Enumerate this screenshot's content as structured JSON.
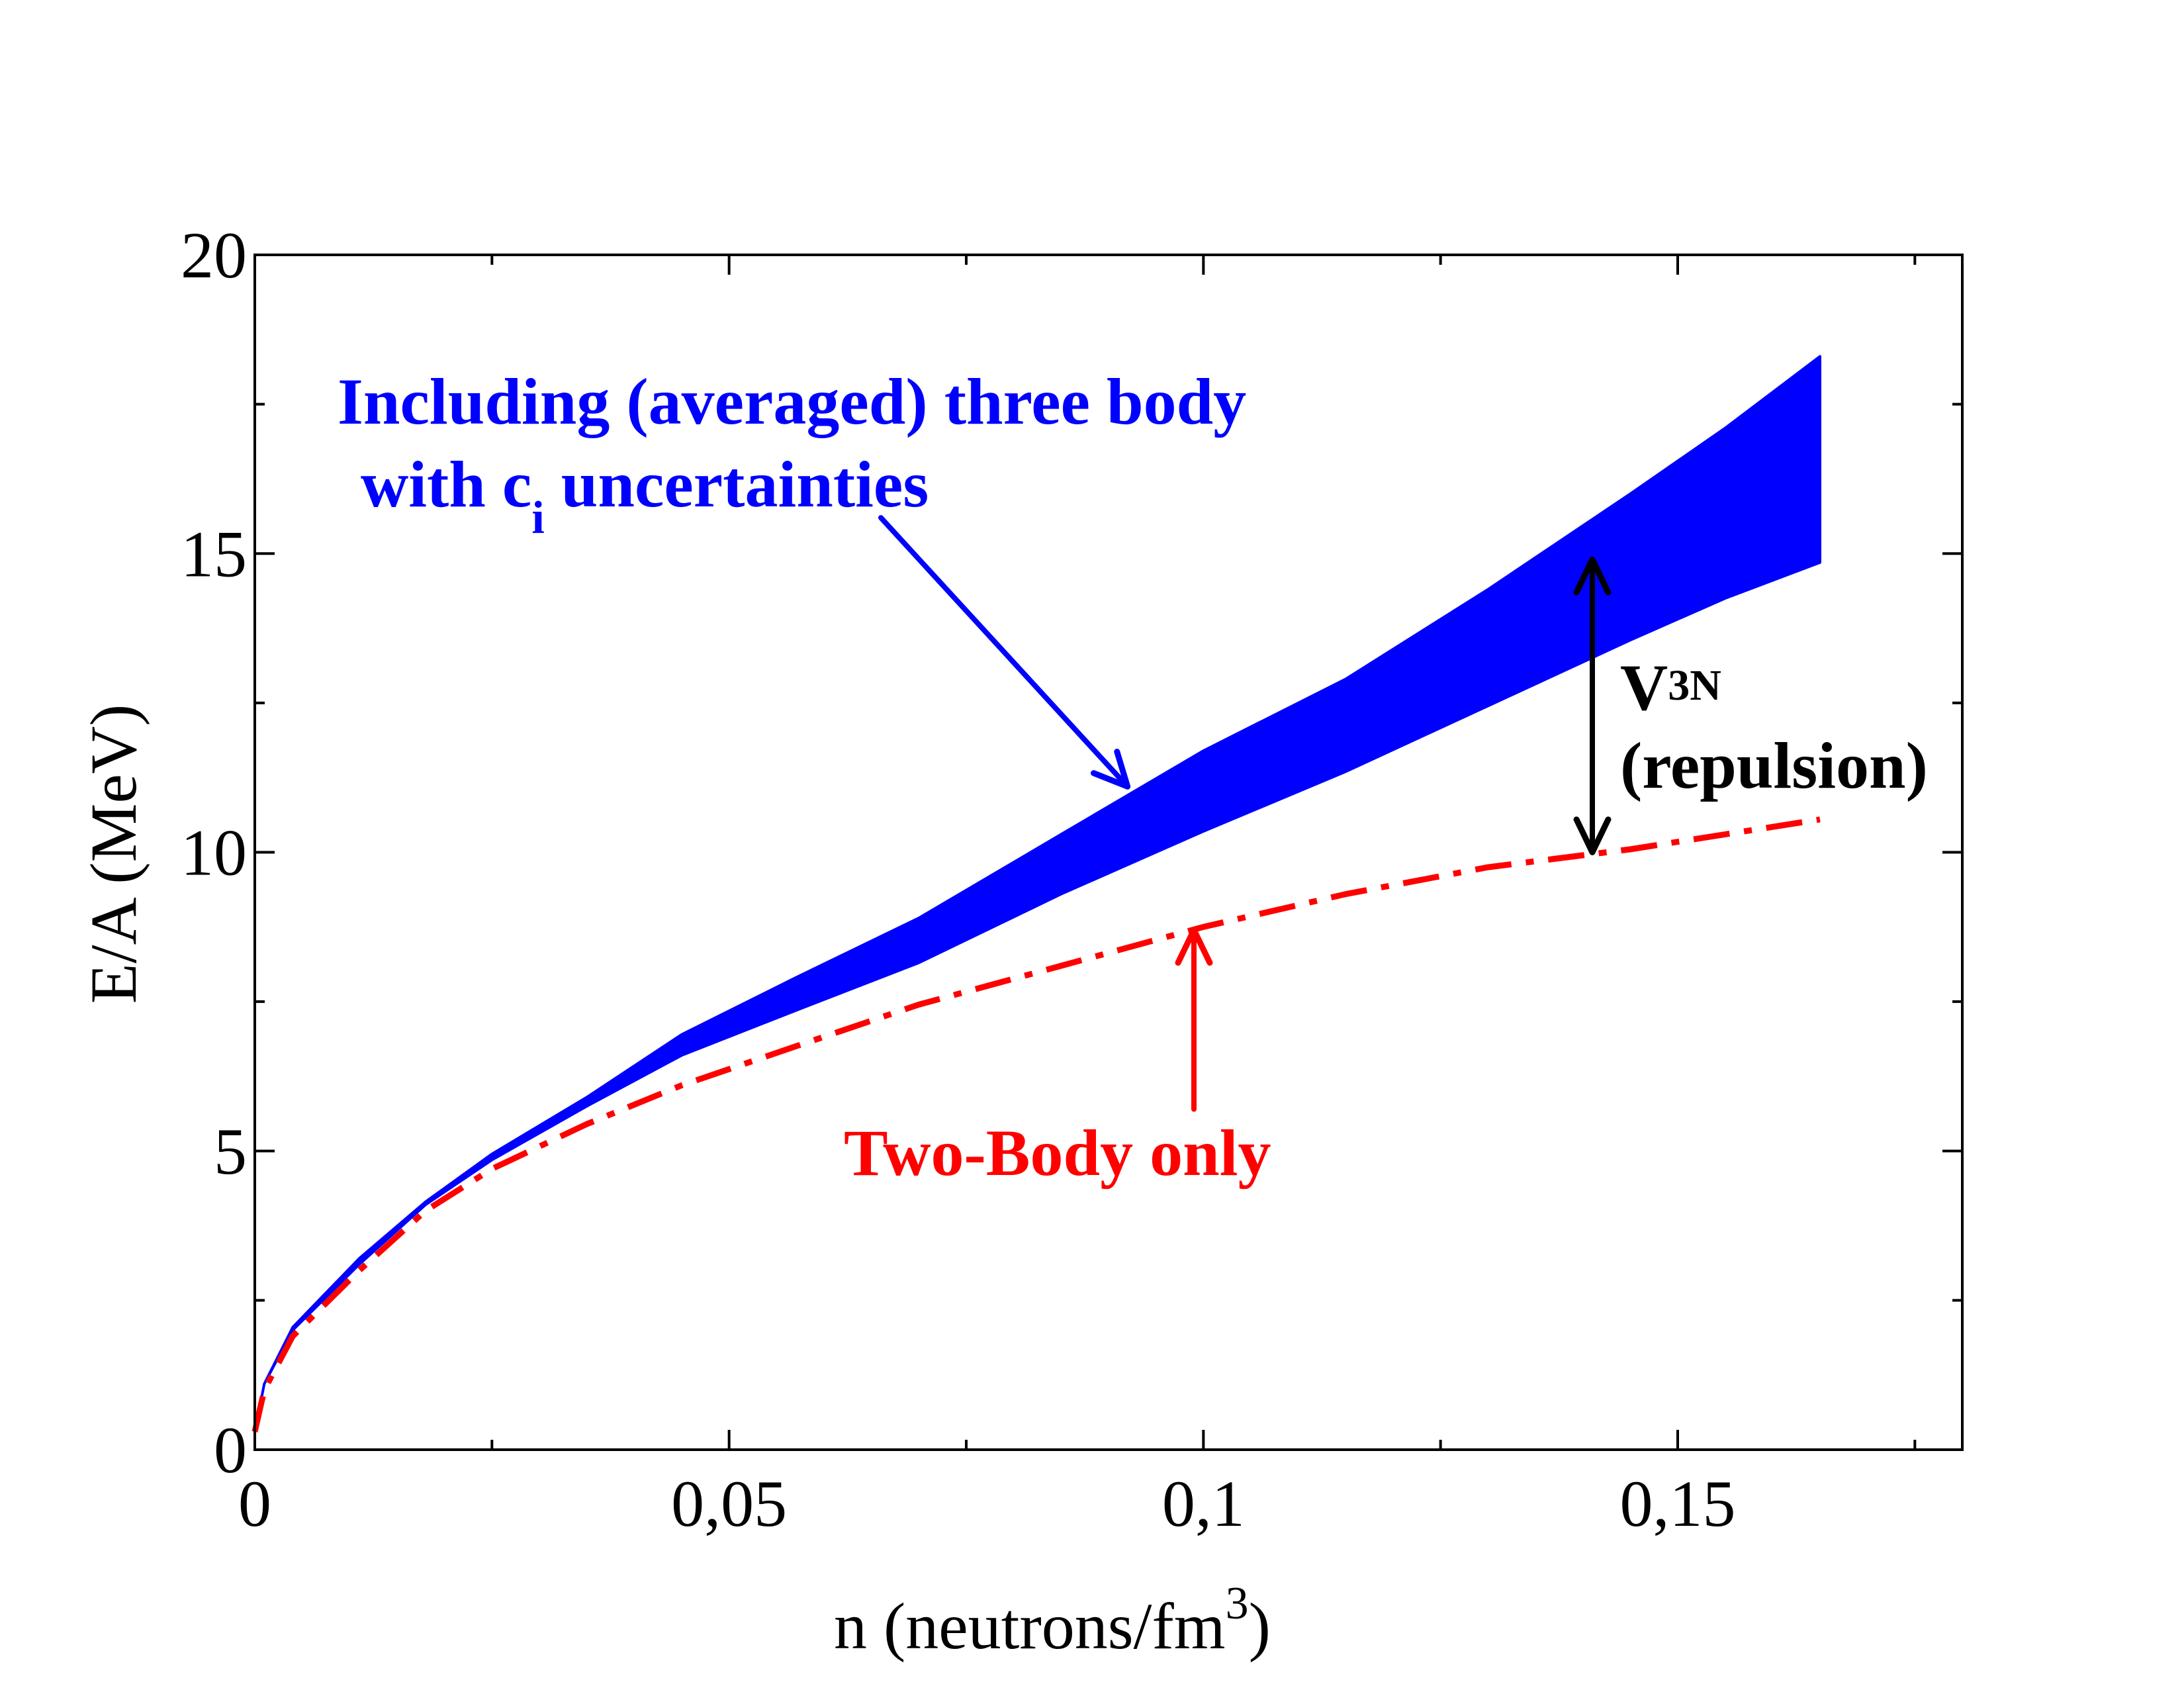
{
  "chart_data": {
    "type": "line",
    "title": "",
    "xlabel": "n (neutrons/fm",
    "xlabel_sup": "3",
    "xlabel_close": ")",
    "ylabel": "E/A  (MeV)",
    "xlim": [
      0,
      0.18
    ],
    "ylim": [
      0,
      20
    ],
    "x_major_ticks": [
      0,
      0.05,
      0.1,
      0.15
    ],
    "x_tick_labels": [
      "0",
      "0,05",
      "0,1",
      "0,15"
    ],
    "x_minor_ticks": [
      0.025,
      0.075,
      0.125,
      0.175
    ],
    "y_major_ticks": [
      0,
      5,
      10,
      15,
      20
    ],
    "y_tick_labels": [
      "0",
      "5",
      "10",
      "15",
      "20"
    ],
    "y_minor_ticks": [
      2.5,
      7.5,
      12.5,
      17.5
    ],
    "grid": false,
    "colors": {
      "band": "#0000ff",
      "two_body": "#ff0000",
      "v3n": "#000000"
    },
    "series": [
      {
        "name": "Including (averaged) three body with c_i uncertainties (upper)",
        "style": "band-upper",
        "x": [
          0,
          0.001,
          0.004,
          0.011,
          0.018,
          0.025,
          0.035,
          0.045,
          0.057,
          0.07,
          0.085,
          0.1,
          0.115,
          0.13,
          0.145,
          0.155,
          0.165
        ],
        "y": [
          0.3,
          1.1,
          2.05,
          3.2,
          4.15,
          4.95,
          5.9,
          6.95,
          7.9,
          8.9,
          10.3,
          11.7,
          12.9,
          14.4,
          16.0,
          17.1,
          18.3
        ]
      },
      {
        "name": "Including (averaged) three body with c_i uncertainties (lower)",
        "style": "band-lower",
        "x": [
          0,
          0.001,
          0.004,
          0.011,
          0.018,
          0.025,
          0.035,
          0.045,
          0.057,
          0.07,
          0.085,
          0.1,
          0.115,
          0.13,
          0.145,
          0.155,
          0.165
        ],
        "y": [
          0.3,
          1.1,
          2.0,
          3.1,
          4.1,
          4.85,
          5.75,
          6.6,
          7.35,
          8.15,
          9.3,
          10.35,
          11.35,
          12.45,
          13.55,
          14.25,
          14.85
        ]
      },
      {
        "name": "Two-Body only",
        "style": "dash-dot",
        "x": [
          0,
          0.001,
          0.004,
          0.011,
          0.018,
          0.025,
          0.035,
          0.045,
          0.057,
          0.07,
          0.085,
          0.1,
          0.115,
          0.13,
          0.145,
          0.155,
          0.165
        ],
        "y": [
          0.3,
          1.0,
          1.9,
          3.0,
          4.0,
          4.7,
          5.45,
          6.1,
          6.75,
          7.45,
          8.1,
          8.75,
          9.3,
          9.75,
          10.05,
          10.3,
          10.55
        ]
      }
    ],
    "annotations": {
      "three_body_line1": "Including (averaged) three body",
      "three_body_line2_a": "with c",
      "three_body_line2_sub": "i",
      "three_body_line2_b": " uncertainties",
      "two_body": "Two-Body only",
      "v3n_main": "V",
      "v3n_sub": "3N",
      "v3n_paren": "(repulsion)"
    },
    "pointer_arrows": [
      {
        "name": "three-body-arrow",
        "from": [
          0.066,
          15.6
        ],
        "to": [
          0.092,
          11.1
        ]
      },
      {
        "name": "two-body-arrow",
        "from": [
          0.099,
          5.7
        ],
        "to": [
          0.099,
          8.7
        ]
      },
      {
        "name": "v3n-arrow",
        "from": [
          0.141,
          14.9
        ],
        "to": [
          0.141,
          10.0
        ]
      }
    ]
  }
}
